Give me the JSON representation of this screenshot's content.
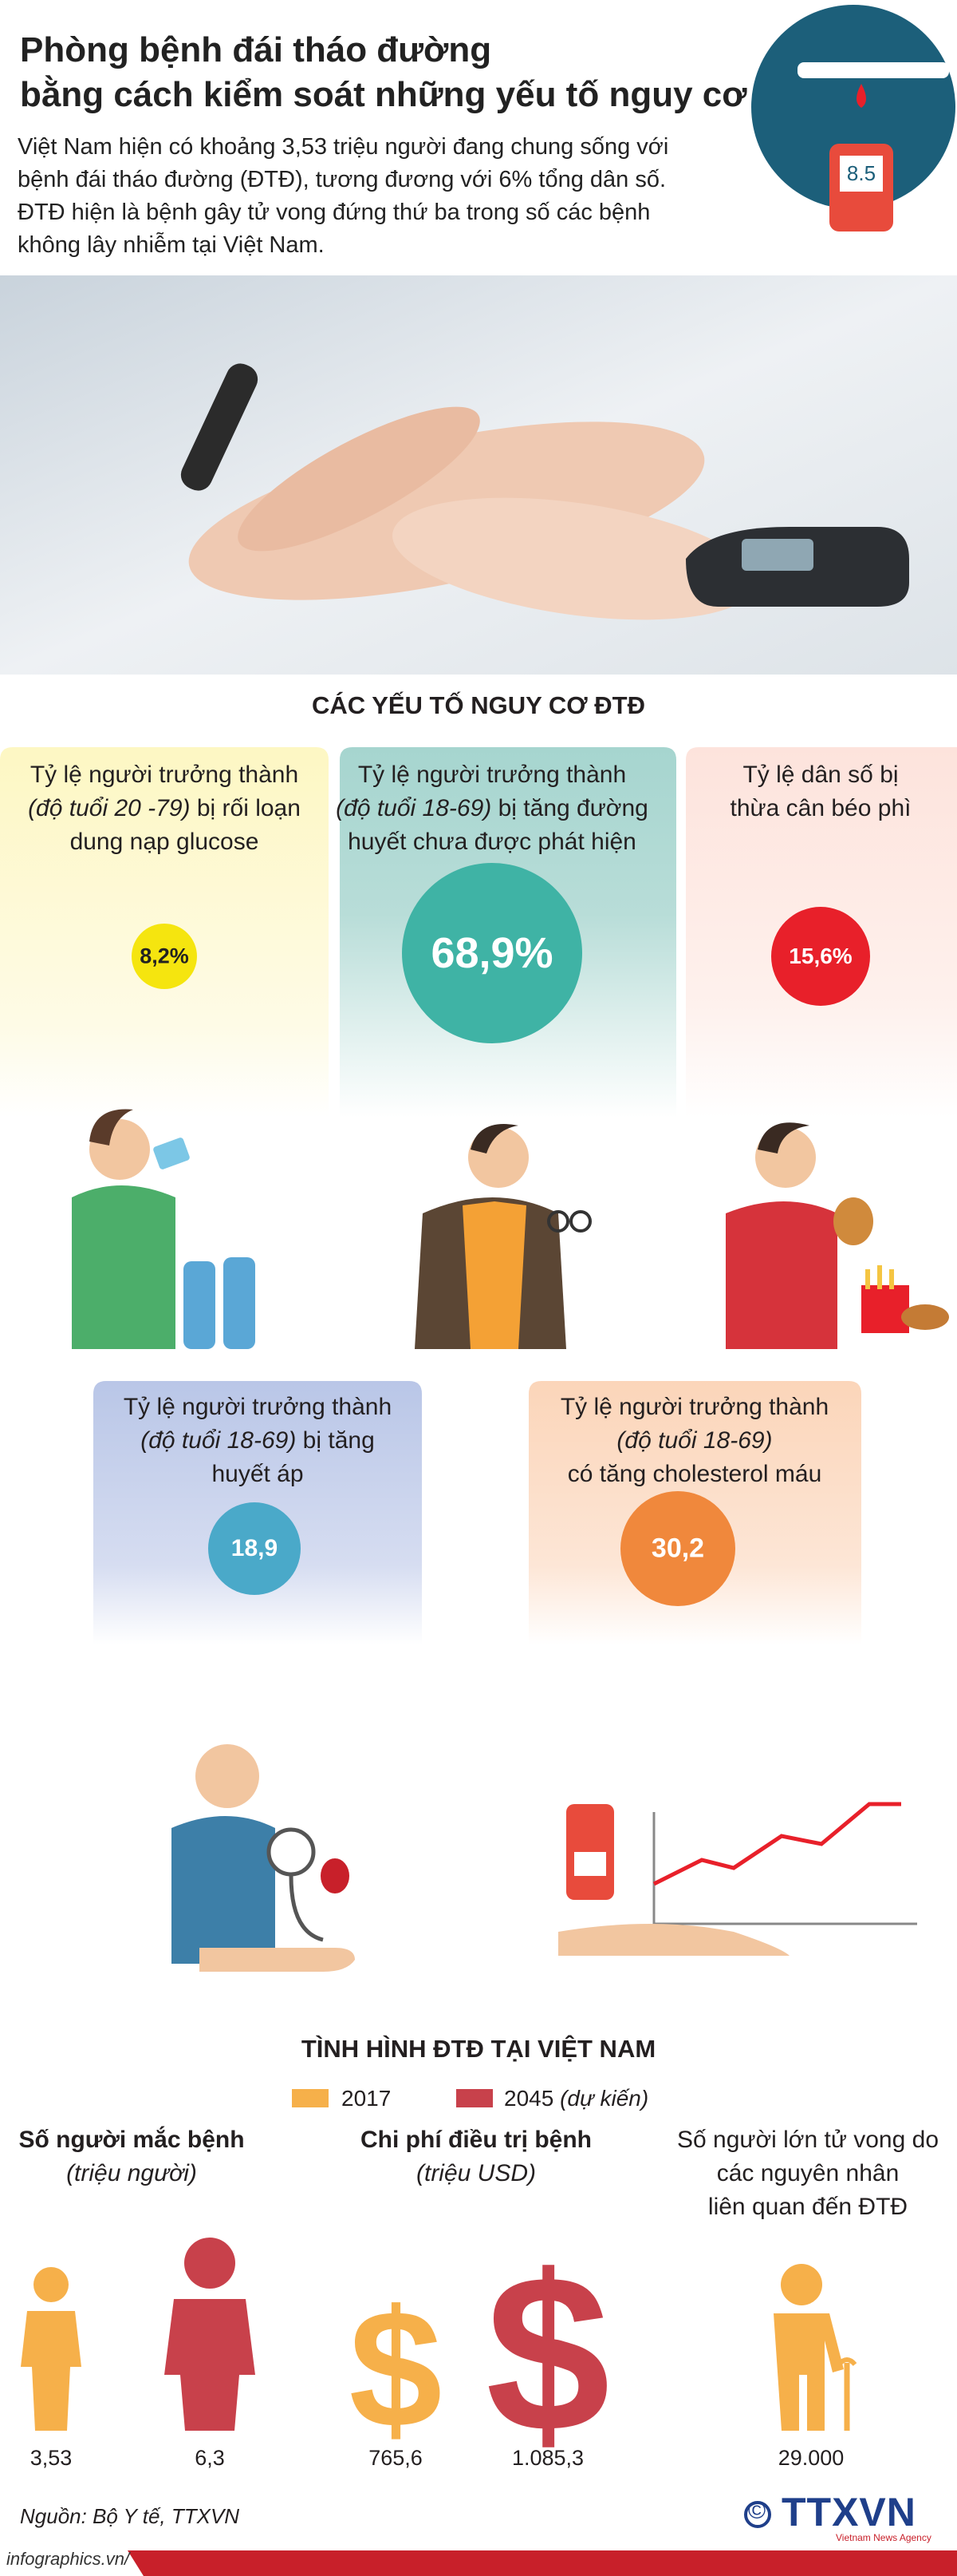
{
  "header": {
    "title_lines": [
      "Phòng bệnh đái tháo đường",
      "bằng cách kiểm soát những yếu tố nguy cơ"
    ],
    "intro_lines": [
      "Việt Nam hiện có khoảng 3,53 triệu người đang chung sống với",
      "bệnh đái tháo đường (ĐTĐ),  tương đương với 6% tổng dân số.",
      "ĐTĐ hiện là bệnh gây tử vong đứng thứ ba trong số các bệnh",
      "không lây nhiễm tại Việt Nam."
    ]
  },
  "risk_section": {
    "title": "CÁC YẾU TỐ NGUY CƠ ĐTĐ",
    "factors": [
      {
        "lines": [
          [
            "Tỷ lệ người trưởng thành"
          ],
          [
            {
              "italic": "(độ tuổi 20 -79)"
            },
            " bị rối loạn"
          ],
          [
            "dung nạp glucose"
          ]
        ],
        "value": "8,2%"
      },
      {
        "lines": [
          [
            "Tỷ lệ người trưởng thành"
          ],
          [
            {
              "italic": "(độ tuổi 18-69)"
            },
            " bị tăng đường"
          ],
          [
            "huyết chưa được phát hiện"
          ]
        ],
        "value": "68,9%"
      },
      {
        "lines": [
          [
            "Tỷ lệ dân số bị"
          ],
          [
            "thừa cân béo phì"
          ]
        ],
        "value": "15,6%"
      },
      {
        "lines": [
          [
            "Tỷ lệ người trưởng thành"
          ],
          [
            {
              "italic": "(độ tuổi 18-69)"
            },
            " bị tăng"
          ],
          [
            "huyết áp"
          ]
        ],
        "value": "18,9"
      },
      {
        "lines": [
          [
            "Tỷ lệ người trưởng thành"
          ],
          [
            {
              "italic": "(độ tuổi 18-69)"
            }
          ],
          [
            "có tăng cholesterol máu"
          ]
        ],
        "value": "30,2"
      }
    ]
  },
  "situation_section": {
    "title": "TÌNH HÌNH ĐTĐ TẠI VIỆT NAM",
    "legend": [
      {
        "label": "2017"
      },
      {
        "label": "2045",
        "note": "(dự kiến)"
      }
    ],
    "stats": [
      {
        "title": "Số người mắc bệnh",
        "unit": "(triệu người)",
        "values": [
          "3,53",
          "6,3"
        ]
      },
      {
        "title": "Chi phí điều trị bệnh",
        "unit": "(triệu USD)",
        "values": [
          "765,6",
          "1.085,3"
        ]
      },
      {
        "title_lines": [
          "Số người lớn tử vong do",
          "các nguyên nhân",
          "liên quan đến ĐTĐ"
        ],
        "values": [
          "29.000"
        ]
      }
    ]
  },
  "footer": {
    "source": "Nguồn: Bộ Y tế, TTXVN",
    "logo": "TTXVN",
    "logo_subtitle": "Vietnam News Agency",
    "copyright": "©",
    "site": "infographics.vn/"
  }
}
